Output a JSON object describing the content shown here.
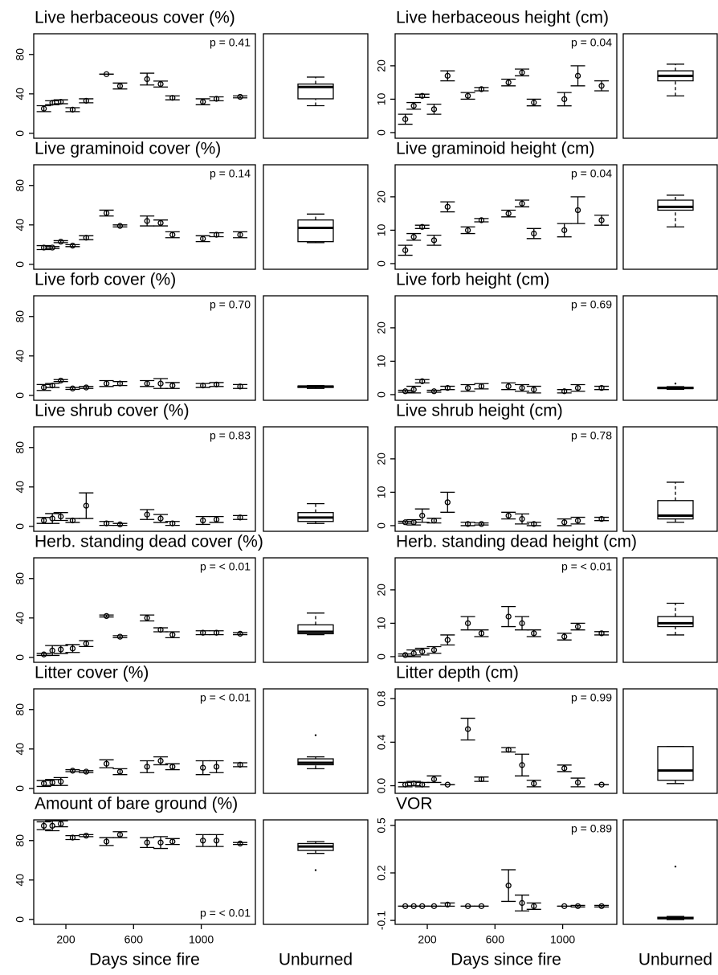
{
  "chart_data": [
    {
      "type": "errorbar",
      "title": "Live herbaceous cover (%)",
      "annotation": "p = 0.41",
      "annotation_corner": "top-right",
      "x": [
        70,
        120,
        170,
        240,
        320,
        440,
        520,
        680,
        760,
        830,
        1010,
        1090,
        1230
      ],
      "values": [
        25,
        31,
        32,
        24,
        33,
        60,
        48,
        55,
        50,
        36,
        32,
        35,
        37
      ],
      "errors": [
        3,
        2,
        2,
        2,
        2,
        0,
        3,
        6,
        3,
        2,
        3,
        2,
        1
      ],
      "xlim": [
        10,
        1320
      ],
      "ylim": [
        -5,
        101
      ],
      "yticks": [
        0,
        40,
        80
      ],
      "unburned": {
        "type": "box",
        "min": 28,
        "q1": 35,
        "median": 47,
        "q3": 50,
        "max": 57,
        "outliers": []
      }
    },
    {
      "type": "errorbar",
      "title": "Live herbaceous height (cm)",
      "annotation": "p = 0.04",
      "annotation_corner": "top-right",
      "x": [
        70,
        120,
        170,
        240,
        320,
        440,
        520,
        680,
        760,
        830,
        1010,
        1090,
        1230
      ],
      "values": [
        4,
        8,
        11,
        7,
        17,
        11,
        13,
        15,
        18,
        9,
        10,
        17,
        14
      ],
      "errors": [
        1.5,
        1,
        0.5,
        1.5,
        1.5,
        1,
        0.5,
        1,
        1,
        1,
        2,
        3,
        1.5
      ],
      "xlim": [
        10,
        1320
      ],
      "ylim": [
        -1.7,
        29.6
      ],
      "yticks": [
        0,
        10,
        20
      ],
      "unburned": {
        "type": "box",
        "min": 11,
        "q1": 15.5,
        "median": 17,
        "q3": 18.5,
        "max": 20.5,
        "outliers": []
      }
    },
    {
      "type": "errorbar",
      "title": "Live graminoid cover (%)",
      "annotation": "p = 0.14",
      "annotation_corner": "top-right",
      "x": [
        70,
        120,
        170,
        240,
        320,
        440,
        520,
        680,
        760,
        830,
        1010,
        1090,
        1230
      ],
      "values": [
        17,
        17,
        23,
        19,
        27,
        52,
        39,
        44,
        42,
        30,
        26,
        30,
        30
      ],
      "errors": [
        2,
        1,
        1,
        1,
        2,
        3,
        1,
        5,
        3,
        3,
        3,
        2,
        3
      ],
      "xlim": [
        10,
        1320
      ],
      "ylim": [
        -5,
        101
      ],
      "yticks": [
        0,
        40,
        80
      ],
      "unburned": {
        "type": "box",
        "min": 22,
        "q1": 23,
        "median": 37,
        "q3": 45,
        "max": 51,
        "outliers": []
      }
    },
    {
      "type": "errorbar",
      "title": "Live graminoid height (cm)",
      "annotation": "p = 0.04",
      "annotation_corner": "top-right",
      "x": [
        70,
        120,
        170,
        240,
        320,
        440,
        520,
        680,
        760,
        830,
        1010,
        1090,
        1230
      ],
      "values": [
        4,
        8,
        11,
        7,
        17,
        10,
        13,
        15,
        18,
        9,
        10,
        16,
        13
      ],
      "errors": [
        1.5,
        1,
        0.5,
        1.5,
        1.5,
        1,
        0.5,
        1,
        1,
        1.5,
        2,
        4,
        1.5
      ],
      "xlim": [
        10,
        1320
      ],
      "ylim": [
        -1.7,
        29.6
      ],
      "yticks": [
        0,
        10,
        20
      ],
      "unburned": {
        "type": "box",
        "min": 11,
        "q1": 16,
        "median": 17,
        "q3": 19,
        "max": 20.5,
        "outliers": []
      }
    },
    {
      "type": "errorbar",
      "title": "Live forb cover (%)",
      "annotation": "p = 0.70",
      "annotation_corner": "top-right",
      "x": [
        70,
        120,
        170,
        240,
        320,
        440,
        520,
        680,
        760,
        830,
        1010,
        1090,
        1230
      ],
      "values": [
        8,
        10,
        15,
        7,
        8,
        12,
        12,
        12,
        12,
        10,
        10,
        11,
        9
      ],
      "errors": [
        3,
        2,
        1,
        1,
        1,
        3,
        2,
        3,
        5,
        3,
        2,
        2,
        2
      ],
      "xlim": [
        10,
        1320
      ],
      "ylim": [
        -5,
        101
      ],
      "yticks": [
        0,
        40,
        80
      ],
      "unburned": {
        "type": "box",
        "min": 7,
        "q1": 8,
        "median": 9,
        "q3": 9.5,
        "max": 10,
        "outliers": []
      }
    },
    {
      "type": "errorbar",
      "title": "Live forb height (cm)",
      "annotation": "p = 0.69",
      "annotation_corner": "top-right",
      "x": [
        70,
        120,
        170,
        240,
        320,
        440,
        520,
        680,
        760,
        830,
        1010,
        1090,
        1230
      ],
      "values": [
        1,
        1.5,
        4,
        1,
        2,
        2,
        2.5,
        2.5,
        2,
        1.5,
        1,
        2,
        2
      ],
      "errors": [
        0.3,
        1,
        0.5,
        0.3,
        0.5,
        1,
        0.8,
        1,
        1,
        1,
        0.5,
        1,
        0.5
      ],
      "xlim": [
        10,
        1320
      ],
      "ylim": [
        -1.7,
        29.6
      ],
      "yticks": [
        0,
        10,
        20
      ],
      "unburned": {
        "type": "box",
        "min": 1.6,
        "q1": 1.8,
        "median": 2,
        "q3": 2.2,
        "max": 2.4,
        "outliers": [
          3.3
        ]
      }
    },
    {
      "type": "errorbar",
      "title": "Live shrub cover (%)",
      "annotation": "p = 0.83",
      "annotation_corner": "top-right",
      "x": [
        70,
        120,
        170,
        240,
        320,
        440,
        520,
        680,
        760,
        830,
        1010,
        1090,
        1230
      ],
      "values": [
        6,
        8,
        10,
        6,
        21,
        3,
        2,
        12,
        8,
        3,
        6,
        7,
        9
      ],
      "errors": [
        3,
        5,
        4,
        2,
        13,
        2,
        1,
        5,
        4,
        2,
        4,
        3,
        2
      ],
      "xlim": [
        10,
        1320
      ],
      "ylim": [
        -5,
        101
      ],
      "yticks": [
        0,
        40,
        80
      ],
      "unburned": {
        "type": "box",
        "min": 3,
        "q1": 5,
        "median": 9,
        "q3": 14,
        "max": 23,
        "outliers": []
      }
    },
    {
      "type": "errorbar",
      "title": "Live shrub height (cm)",
      "annotation": "p = 0.78",
      "annotation_corner": "top-right",
      "x": [
        70,
        120,
        170,
        240,
        320,
        440,
        520,
        680,
        760,
        830,
        1010,
        1090,
        1230
      ],
      "values": [
        1,
        1,
        3,
        1.5,
        7,
        0.5,
        0.5,
        3,
        2,
        0.5,
        1,
        1.5,
        2
      ],
      "errors": [
        0.3,
        0.8,
        2,
        0.7,
        3,
        0.5,
        0.3,
        1,
        1.5,
        0.5,
        1,
        1,
        0.5
      ],
      "xlim": [
        10,
        1320
      ],
      "ylim": [
        -1.7,
        29.6
      ],
      "yticks": [
        0,
        10,
        20
      ],
      "unburned": {
        "type": "box",
        "min": 1,
        "q1": 2,
        "median": 3,
        "q3": 7.5,
        "max": 13,
        "outliers": []
      }
    },
    {
      "type": "errorbar",
      "title": "Herb. standing dead cover (%)",
      "annotation": "p = < 0.01",
      "annotation_corner": "top-right",
      "x": [
        70,
        120,
        170,
        240,
        320,
        440,
        520,
        680,
        760,
        830,
        1010,
        1090,
        1230
      ],
      "values": [
        3,
        7,
        8,
        9,
        14,
        42,
        21,
        40,
        28,
        23,
        25,
        25,
        24
      ],
      "errors": [
        1,
        5,
        4,
        4,
        3,
        1,
        1,
        3,
        2,
        3,
        2,
        2,
        1
      ],
      "xlim": [
        10,
        1320
      ],
      "ylim": [
        -5,
        101
      ],
      "yticks": [
        0,
        40,
        80
      ],
      "unburned": {
        "type": "box",
        "min": 23,
        "q1": 24,
        "median": 26,
        "q3": 33,
        "max": 45,
        "outliers": []
      }
    },
    {
      "type": "errorbar",
      "title": "Herb. standing dead height (cm)",
      "annotation": "p = < 0.01",
      "annotation_corner": "top-right",
      "x": [
        70,
        120,
        170,
        240,
        320,
        440,
        520,
        680,
        760,
        830,
        1010,
        1090,
        1230
      ],
      "values": [
        0.5,
        1,
        1.5,
        2,
        5,
        10,
        7,
        12,
        10,
        7,
        6,
        9,
        7
      ],
      "errors": [
        0.3,
        1,
        1,
        1,
        1.5,
        2,
        1,
        3,
        2,
        1,
        1,
        1,
        0.5
      ],
      "xlim": [
        10,
        1320
      ],
      "ylim": [
        -1.7,
        29.6
      ],
      "yticks": [
        0,
        10,
        20
      ],
      "unburned": {
        "type": "box",
        "min": 6.5,
        "q1": 9,
        "median": 10,
        "q3": 12,
        "max": 16,
        "outliers": []
      }
    },
    {
      "type": "errorbar",
      "title": "Litter cover (%)",
      "annotation": "p = < 0.01",
      "annotation_corner": "top-right",
      "x": [
        70,
        120,
        170,
        240,
        320,
        440,
        520,
        680,
        760,
        830,
        1010,
        1090,
        1230
      ],
      "values": [
        5,
        6,
        7,
        18,
        17,
        25,
        17,
        22,
        28,
        22,
        21,
        22,
        24
      ],
      "errors": [
        3,
        3,
        4,
        1,
        1,
        4,
        3,
        6,
        4,
        3,
        7,
        6,
        2
      ],
      "xlim": [
        10,
        1320
      ],
      "ylim": [
        -5,
        101
      ],
      "yticks": [
        0,
        40,
        80
      ],
      "unburned": {
        "type": "box",
        "min": 20,
        "q1": 24,
        "median": 26,
        "q3": 30,
        "max": 32,
        "outliers": [
          54
        ]
      }
    },
    {
      "type": "errorbar",
      "title": "Litter depth (cm)",
      "annotation": "p = 0.99",
      "annotation_corner": "top-right",
      "x": [
        70,
        120,
        170,
        240,
        320,
        440,
        520,
        680,
        760,
        830,
        1010,
        1090,
        1230
      ],
      "values": [
        0.01,
        0.02,
        0.01,
        0.06,
        0.01,
        0.52,
        0.06,
        0.33,
        0.19,
        0.02,
        0.16,
        0.03,
        0.01
      ],
      "errors": [
        0.02,
        0.02,
        0.02,
        0.03,
        0,
        0.1,
        0.02,
        0.02,
        0.1,
        0.03,
        0.03,
        0.04,
        0
      ],
      "xlim": [
        10,
        1320
      ],
      "ylim": [
        -0.07,
        0.89
      ],
      "yticks": [
        {
          "value": 0,
          "label": "0.0"
        },
        0.4,
        0.8
      ],
      "unburned": {
        "type": "box",
        "min": 0.02,
        "q1": 0.05,
        "median": 0.14,
        "q3": 0.36,
        "max": 0.36,
        "outliers": []
      }
    },
    {
      "type": "errorbar",
      "title": "Amount of bare ground (%)",
      "annotation": "p = < 0.01",
      "annotation_corner": "bottom-right",
      "x": [
        70,
        120,
        170,
        240,
        320,
        440,
        520,
        680,
        760,
        830,
        1010,
        1090,
        1230
      ],
      "values": [
        95,
        95,
        97,
        83,
        85,
        79,
        86,
        78,
        78,
        79,
        80,
        80,
        77
      ],
      "errors": [
        4,
        5,
        3,
        2,
        1,
        4,
        3,
        5,
        6,
        3,
        6,
        6,
        1
      ],
      "xlim": [
        10,
        1320
      ],
      "ylim": [
        -5,
        101
      ],
      "yticks": [
        0,
        40,
        80
      ],
      "xticks": [
        200,
        600,
        1000
      ],
      "xlabel": "Days since fire",
      "unburned": {
        "type": "box",
        "label": "Unburned",
        "min": 67,
        "q1": 70,
        "median": 74,
        "q3": 77,
        "max": 79,
        "outliers": [
          50
        ]
      }
    },
    {
      "type": "errorbar",
      "title": "VOR",
      "annotation": "p = 0.89",
      "annotation_corner": "top-right",
      "x": [
        70,
        120,
        170,
        240,
        320,
        440,
        520,
        680,
        760,
        830,
        1010,
        1090,
        1230
      ],
      "values": [
        -0.01,
        -0.01,
        -0.01,
        -0.01,
        0,
        -0.01,
        -0.01,
        0.12,
        0.01,
        -0.01,
        -0.01,
        -0.01,
        -0.01
      ],
      "errors": [
        0,
        0,
        0,
        0,
        0.01,
        0,
        0,
        0.1,
        0.05,
        0.02,
        0,
        0.005,
        0.005
      ],
      "xlim": [
        10,
        1320
      ],
      "ylim": [
        -0.125,
        0.535
      ],
      "yticks": [
        -0.1,
        0.2,
        0.5
      ],
      "xticks": [
        200,
        600,
        1000
      ],
      "xlabel": "Days since fire",
      "unburned": {
        "type": "box",
        "label": "Unburned",
        "min": -0.095,
        "q1": -0.09,
        "median": -0.085,
        "q3": -0.08,
        "max": -0.075,
        "outliers": [
          0.24
        ]
      }
    }
  ]
}
